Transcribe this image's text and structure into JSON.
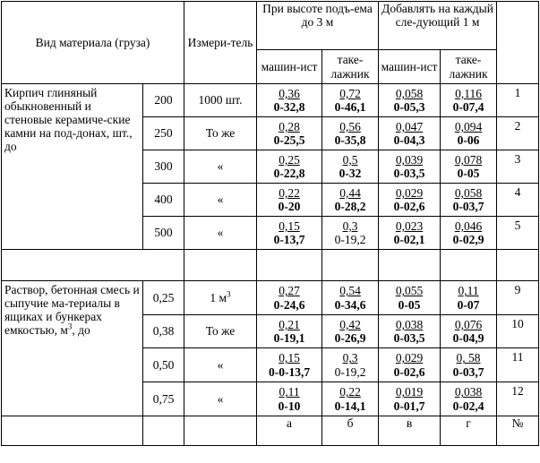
{
  "header": {
    "material": "Вид материала (груза)",
    "measure": "Измери-тель",
    "height_up_to_3m": "При высоте подъ-ема до 3 м",
    "add_each_1m": "Добавлять на каждый сле-дующий 1 м",
    "machinist": "машин-ист",
    "rigger": "таке-лажник",
    "machinist2": "машин-ист",
    "rigger2": "таке-лажник"
  },
  "group1": {
    "material": "Кирпич глиняный обыкновенный и стеновые керамиче-ские камни на под-донах, шт., до",
    "rows": [
      {
        "qty": "200",
        "unit": "1000 шт.",
        "a_top": "0,36",
        "a_bot": "0-32,8",
        "b_top": "0,72",
        "b_bot": "0-46,1",
        "v_top": "0,058",
        "v_bot": "0-05,3",
        "g_top": "0,116",
        "g_bot": "0-07,4",
        "n": "1"
      },
      {
        "qty": "250",
        "unit": "То же",
        "a_top": "0,28",
        "a_bot": "0-25,5",
        "b_top": "0,56",
        "b_bot": "0-35,8",
        "v_top": "0,047",
        "v_bot": "0-04,3",
        "g_top": "0,094",
        "g_bot": "0-06",
        "n": "2"
      },
      {
        "qty": "300",
        "unit": "«",
        "a_top": "0,25",
        "a_bot": "0-22,8",
        "b_top": "0,5",
        "b_bot": "0-32",
        "v_top": "0,039",
        "v_bot": "0-03,5",
        "g_top": "0,078",
        "g_bot": "0-05",
        "n": "3"
      },
      {
        "qty": "400",
        "unit": "«",
        "a_top": "0,22",
        "a_bot": "0-20",
        "b_top": "0,44",
        "b_bot": "0-28,2",
        "v_top": "0,029",
        "v_bot": "0-02,6",
        "g_top": "0,058",
        "g_bot": "0-03,7",
        "n": "4"
      },
      {
        "qty": "500",
        "unit": "«",
        "a_top": "0,15",
        "a_bot": "0-13,7",
        "b_top": "0,3",
        "b_bot": "0-19,2",
        "v_top": "0,023",
        "v_bot": "0-02,1",
        "g_top": "0,046",
        "g_bot": "0-02,9",
        "n": "5"
      }
    ]
  },
  "group2": {
    "material_pre": "Раствор, бетонная смесь и сыпучие ма-териалы в ящиках и бункерах емкостью, м",
    "material_sup": "3",
    "material_post": ", до",
    "rows": [
      {
        "qty": "0,25",
        "unit_pre": "1 м",
        "unit_sup": "3",
        "a_top": "0,27",
        "a_bot": "0-24,6",
        "b_top": "0,54",
        "b_bot": "0-34,6",
        "v_top": "0,055",
        "v_bot": "0-05",
        "g_top": "0,11",
        "g_bot": "0-07",
        "n": "9"
      },
      {
        "qty": "0,38",
        "unit": "То же",
        "a_top": "0,21",
        "a_bot": "0-19,1",
        "b_top": "0,42",
        "b_bot": "0-26,9",
        "v_top": "0,038",
        "v_bot": "0-03,5",
        "g_top": "0,076",
        "g_bot": "0-04,9",
        "n": "10"
      },
      {
        "qty": "0,50",
        "unit": "«",
        "a_top": "0,15",
        "a_bot": "0-0-13,7",
        "b_top": "0,3",
        "b_bot": "0-19,2",
        "v_top": "0,029",
        "v_bot": "0-02,6",
        "g_top": "0, 58",
        "g_bot": "0-03,7",
        "n": "11"
      },
      {
        "qty": "0,75",
        "unit": "«",
        "a_top": "0,11",
        "a_bot": "0-10",
        "b_top": "0,22",
        "b_bot": "0-14,1",
        "v_top": "0,019",
        "v_bot": "0-01,7",
        "g_top": "0,038",
        "g_bot": "0-02,4",
        "n": "12"
      }
    ]
  },
  "footer": {
    "a": "а",
    "b": "б",
    "v": "в",
    "g": "г",
    "num": "№"
  }
}
